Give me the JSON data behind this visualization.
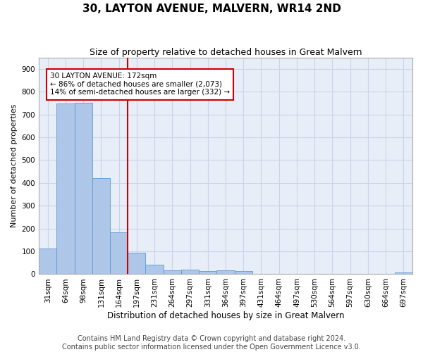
{
  "title": "30, LAYTON AVENUE, MALVERN, WR14 2ND",
  "subtitle": "Size of property relative to detached houses in Great Malvern",
  "xlabel": "Distribution of detached houses by size in Great Malvern",
  "ylabel": "Number of detached properties",
  "bar_color": "#aec6e8",
  "bar_edge_color": "#5b9bd5",
  "grid_color": "#c8d4e8",
  "background_color": "#e8eef8",
  "vline_color": "#cc0000",
  "vline_x_index": 4,
  "annotation_line1": "30 LAYTON AVENUE: 172sqm",
  "annotation_line2": "← 86% of detached houses are smaller (2,073)",
  "annotation_line3": "14% of semi-detached houses are larger (332) →",
  "annotation_box_color": "#cc0000",
  "categories": [
    "31sqm",
    "64sqm",
    "98sqm",
    "131sqm",
    "164sqm",
    "197sqm",
    "231sqm",
    "264sqm",
    "297sqm",
    "331sqm",
    "364sqm",
    "397sqm",
    "431sqm",
    "464sqm",
    "497sqm",
    "530sqm",
    "564sqm",
    "597sqm",
    "630sqm",
    "664sqm",
    "697sqm"
  ],
  "values": [
    112,
    748,
    750,
    420,
    185,
    95,
    42,
    18,
    20,
    15,
    16,
    13,
    0,
    0,
    0,
    0,
    0,
    0,
    0,
    0,
    8
  ],
  "ylim": [
    0,
    950
  ],
  "yticks": [
    0,
    100,
    200,
    300,
    400,
    500,
    600,
    700,
    800,
    900
  ],
  "footer_line1": "Contains HM Land Registry data © Crown copyright and database right 2024.",
  "footer_line2": "Contains public sector information licensed under the Open Government Licence v3.0.",
  "title_fontsize": 11,
  "subtitle_fontsize": 9,
  "xlabel_fontsize": 8.5,
  "ylabel_fontsize": 8,
  "tick_fontsize": 7.5,
  "footer_fontsize": 7,
  "annotation_fontsize": 7.5
}
